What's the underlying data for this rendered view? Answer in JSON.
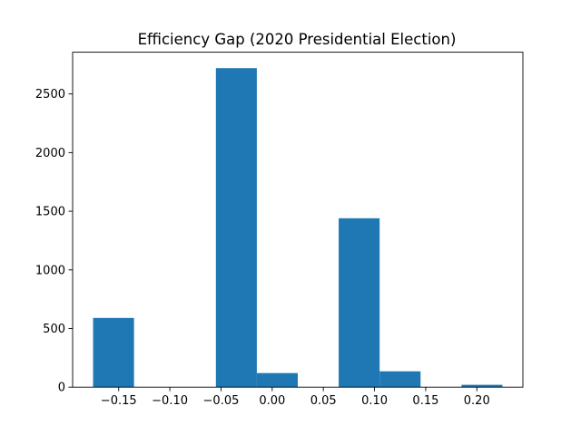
{
  "chart_data": {
    "type": "bar",
    "title": "Efficiency Gap (2020 Presidential Election)",
    "xlabel": "",
    "ylabel": "",
    "bar_color": "#1f77b4",
    "bins": [
      {
        "x0": -0.175,
        "x1": -0.135,
        "value": 590
      },
      {
        "x0": -0.135,
        "x1": -0.095,
        "value": 0
      },
      {
        "x0": -0.095,
        "x1": -0.055,
        "value": 0
      },
      {
        "x0": -0.055,
        "x1": -0.015,
        "value": 2720
      },
      {
        "x0": -0.015,
        "x1": 0.025,
        "value": 120
      },
      {
        "x0": 0.025,
        "x1": 0.065,
        "value": 0
      },
      {
        "x0": 0.065,
        "x1": 0.105,
        "value": 1440
      },
      {
        "x0": 0.105,
        "x1": 0.145,
        "value": 135
      },
      {
        "x0": 0.145,
        "x1": 0.185,
        "value": 0
      },
      {
        "x0": 0.185,
        "x1": 0.225,
        "value": 20
      }
    ],
    "xlim": [
      -0.195,
      0.245
    ],
    "ylim": [
      0,
      2856
    ],
    "xticks": [
      -0.15,
      -0.1,
      -0.05,
      0.0,
      0.05,
      0.1,
      0.15,
      0.2
    ],
    "xtick_labels": [
      "−0.15",
      "−0.10",
      "−0.05",
      "0.00",
      "0.05",
      "0.10",
      "0.15",
      "0.20"
    ],
    "yticks": [
      0,
      500,
      1000,
      1500,
      2000,
      2500
    ],
    "ytick_labels": [
      "0",
      "500",
      "1000",
      "1500",
      "2000",
      "2500"
    ],
    "grid": false,
    "legend": "none"
  }
}
